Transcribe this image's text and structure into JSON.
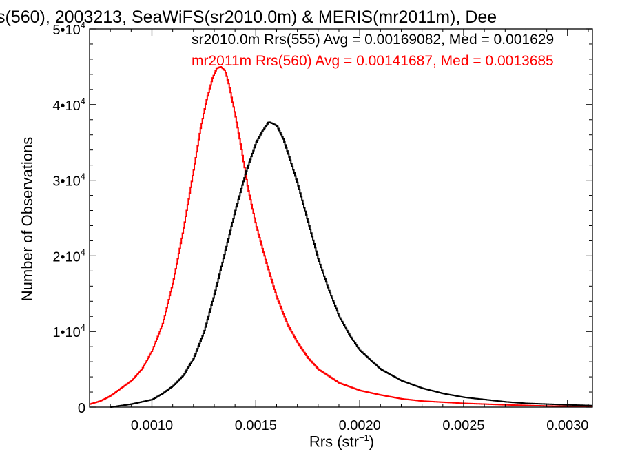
{
  "chart_data": {
    "type": "line",
    "title": "s(560), 2003213, SeaWiFS(sr2010.0m) & MERIS(mr2011m), Dee",
    "xlabel": "Rrs (str",
    "xlabel_sup": "−1",
    "xlabel_close": ")",
    "ylabel": "Number of Observations",
    "xlim": [
      0.0007,
      0.00312
    ],
    "ylim": [
      0,
      50000
    ],
    "x_ticks": [
      {
        "value": 0.001,
        "label": "0.0010"
      },
      {
        "value": 0.0015,
        "label": "0.0015"
      },
      {
        "value": 0.002,
        "label": "0.0020"
      },
      {
        "value": 0.0025,
        "label": "0.0025"
      },
      {
        "value": 0.003,
        "label": "0.0030"
      }
    ],
    "y_ticks": [
      {
        "value": 0,
        "label": "0",
        "exp": ""
      },
      {
        "value": 10000,
        "label": "1•10",
        "exp": "4"
      },
      {
        "value": 20000,
        "label": "2•10",
        "exp": "4"
      },
      {
        "value": 30000,
        "label": "3•10",
        "exp": "4"
      },
      {
        "value": 40000,
        "label": "4•10",
        "exp": "4"
      },
      {
        "value": 50000,
        "label": "5•10",
        "exp": "4"
      }
    ],
    "annotations": [
      "sr2010.0m Rrs(555) Avg = 0.00169082, Med = 0.001629",
      "mr2011m Rrs(560) Avg = 0.00141687, Med = 0.0013685"
    ],
    "series": [
      {
        "color": "#000000",
        "step": true,
        "x": [
          0.0008,
          0.00085,
          0.0009,
          0.00095,
          0.001,
          0.00105,
          0.0011,
          0.00115,
          0.0012,
          0.00125,
          0.0013,
          0.00135,
          0.0014,
          0.00145,
          0.0015,
          0.00153,
          0.00156,
          0.00158,
          0.0016,
          0.00163,
          0.00166,
          0.0017,
          0.00175,
          0.0018,
          0.00185,
          0.0019,
          0.00195,
          0.002,
          0.0021,
          0.0022,
          0.0023,
          0.0024,
          0.0025,
          0.0026,
          0.0027,
          0.0028,
          0.0029,
          0.003,
          0.00312
        ],
        "y": [
          0,
          200,
          400,
          700,
          1000,
          1800,
          2800,
          4200,
          6500,
          10000,
          15000,
          20500,
          26000,
          31000,
          35000,
          36500,
          37700,
          37500,
          37200,
          35500,
          33000,
          29500,
          24500,
          19500,
          15500,
          12000,
          9500,
          7500,
          5000,
          3500,
          2500,
          1800,
          1300,
          1000,
          700,
          500,
          400,
          300,
          200
        ]
      },
      {
        "color": "#ff0000",
        "step": true,
        "x": [
          0.0007,
          0.00075,
          0.0008,
          0.00085,
          0.0009,
          0.00095,
          0.001,
          0.00105,
          0.0011,
          0.00115,
          0.0012,
          0.00123,
          0.00126,
          0.00129,
          0.00131,
          0.00133,
          0.00135,
          0.00137,
          0.0014,
          0.00143,
          0.00146,
          0.0015,
          0.00155,
          0.0016,
          0.00165,
          0.0017,
          0.00175,
          0.0018,
          0.0019,
          0.002,
          0.0021,
          0.0022,
          0.0023,
          0.0025,
          0.0027,
          0.0029,
          0.00312
        ],
        "y": [
          400,
          800,
          1500,
          2500,
          3500,
          5000,
          7500,
          11000,
          16500,
          23500,
          31500,
          36500,
          40500,
          43500,
          44800,
          45000,
          44500,
          42500,
          38500,
          34000,
          29000,
          24000,
          19000,
          14500,
          11000,
          8500,
          6500,
          5000,
          3200,
          2200,
          1600,
          1100,
          800,
          500,
          300,
          150,
          80
        ]
      }
    ]
  }
}
